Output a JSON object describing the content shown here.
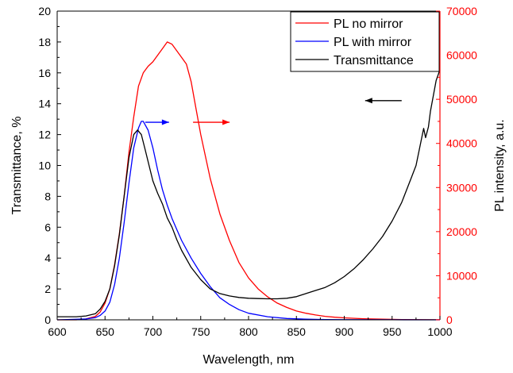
{
  "chart_data": {
    "type": "line",
    "title": "",
    "xlabel": "Wavelength, nm",
    "ylabel_left": "Transmittance, %",
    "ylabel_right": "PL intensity, a.u.",
    "xlim": [
      600,
      1000
    ],
    "ylim_left": [
      0,
      20
    ],
    "ylim_right": [
      0,
      70000
    ],
    "x_ticks": [
      600,
      650,
      700,
      750,
      800,
      850,
      900,
      950,
      1000
    ],
    "y_left_ticks": [
      0,
      2,
      4,
      6,
      8,
      10,
      12,
      14,
      16,
      18,
      20
    ],
    "y_right_ticks": [
      0,
      10000,
      20000,
      30000,
      40000,
      50000,
      60000,
      70000
    ],
    "right_axis_color": "#ff0000",
    "grid": false,
    "legend_position": "top-right",
    "series": [
      {
        "name": "PL no mirror",
        "color": "#ff0000",
        "axis": "right",
        "x": [
          600,
          620,
          630,
          640,
          645,
          650,
          655,
          660,
          665,
          670,
          675,
          680,
          685,
          690,
          695,
          700,
          705,
          710,
          715,
          720,
          725,
          730,
          735,
          740,
          745,
          750,
          760,
          770,
          780,
          790,
          800,
          810,
          820,
          830,
          840,
          850,
          860,
          870,
          880,
          890,
          900,
          920,
          940,
          960,
          980,
          1000
        ],
        "y": [
          0,
          0,
          200,
          800,
          1800,
          3800,
          7000,
          12500,
          19500,
          28000,
          38000,
          46000,
          53000,
          56000,
          57500,
          58500,
          60000,
          61500,
          63000,
          62500,
          61000,
          59500,
          58000,
          54000,
          48000,
          42000,
          32000,
          24000,
          18000,
          13000,
          9500,
          7000,
          5200,
          3800,
          2800,
          2000,
          1500,
          1100,
          800,
          600,
          450,
          250,
          150,
          80,
          40,
          20
        ]
      },
      {
        "name": "PL with mirror",
        "color": "#0000ff",
        "axis": "right",
        "x": [
          600,
          630,
          640,
          645,
          650,
          655,
          660,
          665,
          670,
          675,
          680,
          685,
          688,
          690,
          695,
          700,
          705,
          710,
          715,
          720,
          725,
          730,
          740,
          750,
          760,
          770,
          780,
          790,
          800,
          820,
          840,
          860,
          880,
          900,
          950,
          1000
        ],
        "y": [
          0,
          200,
          500,
          1000,
          2000,
          4000,
          8000,
          14000,
          22000,
          31000,
          39000,
          43500,
          45000,
          45000,
          43000,
          39000,
          34000,
          29500,
          26000,
          23000,
          20500,
          18000,
          14000,
          10500,
          7500,
          5000,
          3500,
          2300,
          1500,
          700,
          300,
          150,
          80,
          40,
          10,
          0
        ]
      },
      {
        "name": "Transmittance",
        "color": "#000000",
        "axis": "left",
        "x": [
          600,
          620,
          630,
          640,
          645,
          650,
          655,
          660,
          665,
          670,
          675,
          680,
          684,
          688,
          692,
          696,
          700,
          705,
          710,
          715,
          720,
          725,
          730,
          740,
          750,
          760,
          770,
          780,
          790,
          800,
          810,
          820,
          830,
          840,
          850,
          860,
          870,
          880,
          890,
          900,
          910,
          920,
          930,
          940,
          950,
          960,
          970,
          975,
          980,
          983,
          985,
          988,
          990,
          993,
          996,
          1000
        ],
        "y": [
          0.2,
          0.2,
          0.25,
          0.4,
          0.7,
          1.2,
          2.0,
          3.5,
          5.5,
          8.0,
          10.5,
          12.0,
          12.3,
          12.0,
          11.0,
          10.0,
          9.0,
          8.2,
          7.5,
          6.6,
          6.0,
          5.2,
          4.5,
          3.4,
          2.6,
          2.0,
          1.7,
          1.55,
          1.45,
          1.4,
          1.38,
          1.36,
          1.36,
          1.4,
          1.5,
          1.7,
          1.9,
          2.1,
          2.4,
          2.8,
          3.3,
          3.9,
          4.6,
          5.4,
          6.4,
          7.6,
          9.2,
          10.0,
          11.5,
          12.4,
          11.8,
          12.5,
          13.5,
          14.5,
          15.5,
          16.2
        ]
      }
    ],
    "annotations": [
      {
        "kind": "arrow",
        "direction": "right",
        "color": "#0000ff",
        "x": 692,
        "y_axis": "left",
        "y": 12.8,
        "length": 30
      },
      {
        "kind": "arrow",
        "direction": "right",
        "color": "#ff0000",
        "x": 742,
        "y_axis": "left",
        "y": 12.8,
        "length": 46
      },
      {
        "kind": "arrow",
        "direction": "left",
        "color": "#000000",
        "x": 960,
        "y_axis": "left",
        "y": 14.2,
        "length": 46
      }
    ]
  }
}
